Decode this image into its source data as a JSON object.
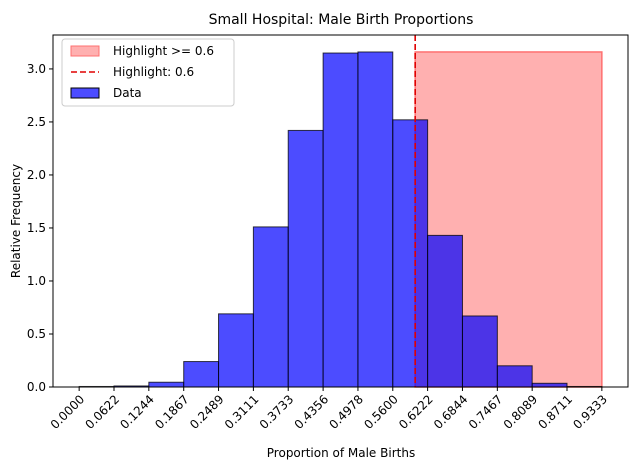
{
  "chart_data": {
    "type": "bar",
    "title": "Small Hospital: Male Birth Proportions",
    "xlabel": "Proportion of Male Births",
    "ylabel": "Relative Frequency",
    "xlim": [
      -0.0467,
      0.98
    ],
    "ylim": [
      0,
      3.32
    ],
    "bin_edges": [
      0.0,
      0.0622,
      0.1244,
      0.1867,
      0.2489,
      0.3111,
      0.3733,
      0.4356,
      0.4978,
      0.56,
      0.6222,
      0.6844,
      0.7467,
      0.8089,
      0.8711,
      0.9333
    ],
    "x_ticks": [
      "0.0000",
      "0.0622",
      "0.1244",
      "0.1867",
      "0.2489",
      "0.3111",
      "0.3733",
      "0.4356",
      "0.4978",
      "0.5600",
      "0.6222",
      "0.6844",
      "0.7467",
      "0.8089",
      "0.8711",
      "0.9333"
    ],
    "y_ticks": [
      0.0,
      0.5,
      1.0,
      1.5,
      2.0,
      2.5,
      3.0
    ],
    "y_tick_labels": [
      "0.0",
      "0.5",
      "1.0",
      "1.5",
      "2.0",
      "2.5",
      "3.0"
    ],
    "series": [
      {
        "name": "Data",
        "values": [
          0.005,
          0.01,
          0.045,
          0.24,
          0.69,
          1.51,
          2.42,
          3.15,
          3.16,
          2.52,
          1.43,
          0.67,
          0.2,
          0.035,
          0.005
        ],
        "color": "#0000ff"
      }
    ],
    "highlight": {
      "threshold": 0.6,
      "line_label": "Highlight: 0.6",
      "region_label": "Highlight >= 0.6",
      "region_end": 0.9333,
      "region_top": 3.16,
      "line_color": "#e00000",
      "region_color": "#ff7070"
    },
    "legend_position": "top-left",
    "grid": false
  }
}
